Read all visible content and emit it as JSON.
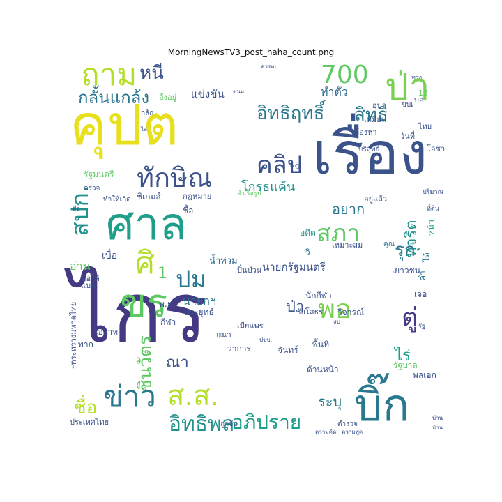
{
  "figure": {
    "title": "MorningNewsTV3_post_haha_count.png"
  },
  "palette": [
    "#440154",
    "#3b528b",
    "#21918c",
    "#2a788e",
    "#5ec962",
    "#fde725",
    "#b5de2b",
    "#7ad151",
    "#1f9e89",
    "#31688e"
  ],
  "words": [
    {
      "text": "คุปต",
      "color": "#e8e01c"
    },
    {
      "text": "ถาม",
      "color": "#b5de2b"
    },
    {
      "text": "หนี",
      "color": "#3b528b"
    },
    {
      "text": "กลั้นแกล้ง",
      "color": "#2a788e"
    },
    {
      "text": "ไกร",
      "color": "#443a83"
    },
    {
      "text": "ศาล",
      "color": "#1f9e89"
    },
    {
      "text": "ทักษิณ",
      "color": "#3b528b"
    },
    {
      "text": "เรื่อง",
      "color": "#3b528b"
    },
    {
      "text": "ป่า",
      "color": "#7ad151"
    },
    {
      "text": "700",
      "color": "#5ec962"
    },
    {
      "text": "คลิป",
      "color": "#3b528b"
    },
    {
      "text": "อิทธิฤทธิ์",
      "color": "#2a788e"
    },
    {
      "text": "สิทธิ",
      "color": "#2a788e"
    },
    {
      "text": "ทำตัว",
      "color": "#31688e"
    },
    {
      "text": "สภา",
      "color": "#5ec962"
    },
    {
      "text": "โกรธแค้น",
      "color": "#21918c"
    },
    {
      "text": "ปม",
      "color": "#2a788e"
    },
    {
      "text": "ข่าว",
      "color": "#2a788e"
    },
    {
      "text": "ส.ส.",
      "color": "#b5de2b"
    },
    {
      "text": "อิทธิพล",
      "color": "#21918c"
    },
    {
      "text": "อภิปราย",
      "color": "#1f9e89"
    },
    {
      "text": "บิ๊ก",
      "color": "#2a788e"
    },
    {
      "text": "พอ",
      "color": "#7ad151"
    },
    {
      "text": "ตู่",
      "color": "#443a83"
    },
    {
      "text": "ระบุ",
      "color": "#2a788e"
    },
    {
      "text": "ชื่อ",
      "color": "#b5de2b"
    },
    {
      "text": "ชินวัตร",
      "color": "#5ec962"
    },
    {
      "text": "ณา",
      "color": "#3b528b"
    },
    {
      "text": "นายกฯ",
      "color": "#2a788e"
    },
    {
      "text": "1",
      "color": "#5ec962"
    },
    {
      "text": "ขร",
      "color": "#5ec962"
    },
    {
      "text": "ศิ",
      "color": "#b5de2b"
    },
    {
      "text": "สปก.",
      "color": "#21918c"
    },
    {
      "text": "อ่าน",
      "color": "#5ec962"
    },
    {
      "text": "เบื่อ",
      "color": "#3b528b"
    },
    {
      "text": "อยาก",
      "color": "#2a788e"
    },
    {
      "text": "ไร่",
      "color": "#1f9e89"
    },
    {
      "text": "ทุจริต",
      "color": "#21918c"
    },
    {
      "text": "รุก",
      "color": "#2a788e"
    },
    {
      "text": "นายกรัฐมนตรี",
      "color": "#3b528b"
    },
    {
      "text": "ป่า",
      "color": "#3b528b"
    },
    {
      "text": "น้ำท่วม",
      "color": "#31688e"
    },
    {
      "text": "แข่งขัน",
      "color": "#3b528b"
    },
    {
      "text": "อดีต",
      "color": "#21918c"
    },
    {
      "text": "ได้",
      "color": "#2a788e"
    },
    {
      "text": "หน้า",
      "color": "#1f9e89"
    },
    {
      "text": "คำ",
      "color": "#2a788e"
    },
    {
      "text": "เยาวชน",
      "color": "#3b528b"
    },
    {
      "text": "ประยุทธ์",
      "color": "#3b528b"
    },
    {
      "text": "ขอให้",
      "color": "#3b528b"
    },
    {
      "text": "โอวาท",
      "color": "#3b528b"
    },
    {
      "text": "พาก",
      "color": "#3b528b"
    },
    {
      "text": "ตรวจ",
      "color": "#3b528b"
    },
    {
      "text": "ทำให้เกิด",
      "color": "#3b528b"
    },
    {
      "text": "รัฐมนตรี",
      "color": "#5ec962"
    },
    {
      "text": "อยู่แล้ว",
      "color": "#3b528b"
    },
    {
      "text": "วิจารณ์",
      "color": "#3b528b"
    },
    {
      "text": "เจอ",
      "color": "#3b528b"
    },
    {
      "text": "รัฐบาล",
      "color": "#5ec962"
    },
    {
      "text": "พลเอก",
      "color": "#3b528b"
    },
    {
      "text": "ประเทศไทย",
      "color": "#3b528b"
    },
    {
      "text": "ถูกจับ",
      "color": "#3b528b"
    },
    {
      "text": "ตำรวจ",
      "color": "#3b528b"
    },
    {
      "text": "ความคิด",
      "color": "#3b528b"
    },
    {
      "text": "ความพูด",
      "color": "#3b528b"
    },
    {
      "text": "บ้าน",
      "color": "#3b528b"
    },
    {
      "text": "จันทร์",
      "color": "#3b528b"
    },
    {
      "text": "พื้นที่",
      "color": "#3b528b"
    },
    {
      "text": "ด้านหน้า",
      "color": "#3b528b"
    },
    {
      "text": "ว่าการ",
      "color": "#3b528b"
    },
    {
      "text": "ขบเ",
      "color": "#3b528b"
    },
    {
      "text": "นักกีฬา",
      "color": "#3b528b"
    },
    {
      "text": "เมียแพร",
      "color": "#3b528b"
    },
    {
      "text": "บริสุทธ์",
      "color": "#3b528b"
    },
    {
      "text": "ชัยโสธร",
      "color": "#3b528b"
    },
    {
      "text": "หนี",
      "color": "#3b528b"
    },
    {
      "text": "อุบล",
      "color": "#3b528b"
    },
    {
      "text": "เหมือน",
      "color": "#3b528b"
    },
    {
      "text": "ต้องหา",
      "color": "#3b528b"
    },
    {
      "text": "ไทย",
      "color": "#3b528b"
    },
    {
      "text": "วันที่",
      "color": "#3b528b"
    },
    {
      "text": "โอซา",
      "color": "#3b528b"
    },
    {
      "text": "ชนม",
      "color": "#3b528b"
    },
    {
      "text": "อ้งอยู่",
      "color": "#5ec962"
    },
    {
      "text": "กลัก",
      "color": "#3b528b"
    },
    {
      "text": "ปั่นป่วน",
      "color": "#3b528b"
    },
    {
      "text": "เหมาะสม",
      "color": "#3b528b"
    },
    {
      "text": "กฎหมาย",
      "color": "#3b528b"
    },
    {
      "text": "ซื้อ",
      "color": "#3b528b"
    },
    {
      "text": "พ.ย.",
      "color": "#3b528b"
    },
    {
      "text": "กีฬา",
      "color": "#3b528b"
    },
    {
      "text": "ณา",
      "color": "#3b528b"
    },
    {
      "text": "ชิเกมส์",
      "color": "#3b528b"
    },
    {
      "text": "ไล่",
      "color": "#3b528b"
    },
    {
      "text": "13",
      "color": "#5ec962"
    },
    {
      "text": "บอ",
      "color": "#3b528b"
    },
    {
      "text": "ทรง",
      "color": "#3b528b"
    },
    {
      "text": "ปริมาณ",
      "color": "#3b528b"
    },
    {
      "text": "ที่ดิน",
      "color": "#3b528b"
    },
    {
      "text": "รัฐ",
      "color": "#3b528b"
    },
    {
      "text": "งบ",
      "color": "#3b528b"
    },
    {
      "text": "สือ",
      "color": "#3b528b"
    },
    {
      "text": "แบก",
      "color": "#3b528b"
    },
    {
      "text": "รู้",
      "color": "#3b528b"
    },
    {
      "text": "กระทรวงมหาดไทย",
      "color": "#3b528b"
    },
    {
      "text": "สำเร็จรูป",
      "color": "#5ec962"
    },
    {
      "text": "ปขบ.",
      "color": "#3b528b"
    },
    {
      "text": "ควรทบ",
      "color": "#3b528b"
    },
    {
      "text": "บ้าน",
      "color": "#3b528b"
    },
    {
      "text": "ฤา",
      "color": "#2a788e"
    },
    {
      "text": "วิ",
      "color": "#2a788e"
    },
    {
      "text": "คุณ",
      "color": "#2a788e"
    }
  ]
}
